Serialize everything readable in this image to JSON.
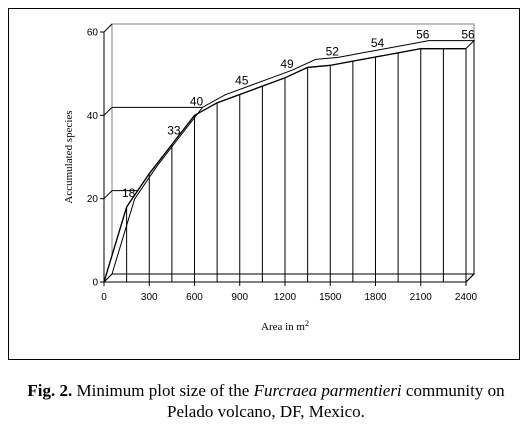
{
  "chart_data": {
    "type": "area",
    "xlabel": "Area in m",
    "xlabel_sup": "2",
    "ylabel": "Accumulated species",
    "xlim": [
      0,
      2400
    ],
    "ylim": [
      0,
      60
    ],
    "xticks": [
      0,
      300,
      600,
      900,
      1200,
      1500,
      1800,
      2100,
      2400
    ],
    "yticks": [
      0,
      20,
      40,
      60
    ],
    "grid": false,
    "x": [
      0,
      150,
      300,
      450,
      600,
      750,
      900,
      1050,
      1200,
      1350,
      1500,
      1650,
      1800,
      1950,
      2100,
      2250,
      2400
    ],
    "y": [
      0,
      18,
      26,
      33,
      40,
      43,
      45,
      47,
      49,
      51.5,
      52,
      53,
      54,
      55,
      56,
      56,
      56
    ],
    "labeled_points": [
      {
        "x": 150,
        "y": 18,
        "label": "18"
      },
      {
        "x": 450,
        "y": 33,
        "label": "33"
      },
      {
        "x": 600,
        "y": 40,
        "label": "40"
      },
      {
        "x": 900,
        "y": 45,
        "label": "45"
      },
      {
        "x": 1200,
        "y": 49,
        "label": "49"
      },
      {
        "x": 1500,
        "y": 52,
        "label": "52"
      },
      {
        "x": 1800,
        "y": 54,
        "label": "54"
      },
      {
        "x": 2100,
        "y": 56,
        "label": "56"
      },
      {
        "x": 2400,
        "y": 56,
        "label": "56"
      }
    ],
    "reference_lines_y": [
      20,
      40
    ]
  },
  "caption": {
    "prefix": "Fig. 2.",
    "text_before": " Minimum plot size of the ",
    "species": "Furcraea parmentieri",
    "text_after": " community on",
    "line2": "Pelado volcano, DF, Mexico."
  }
}
